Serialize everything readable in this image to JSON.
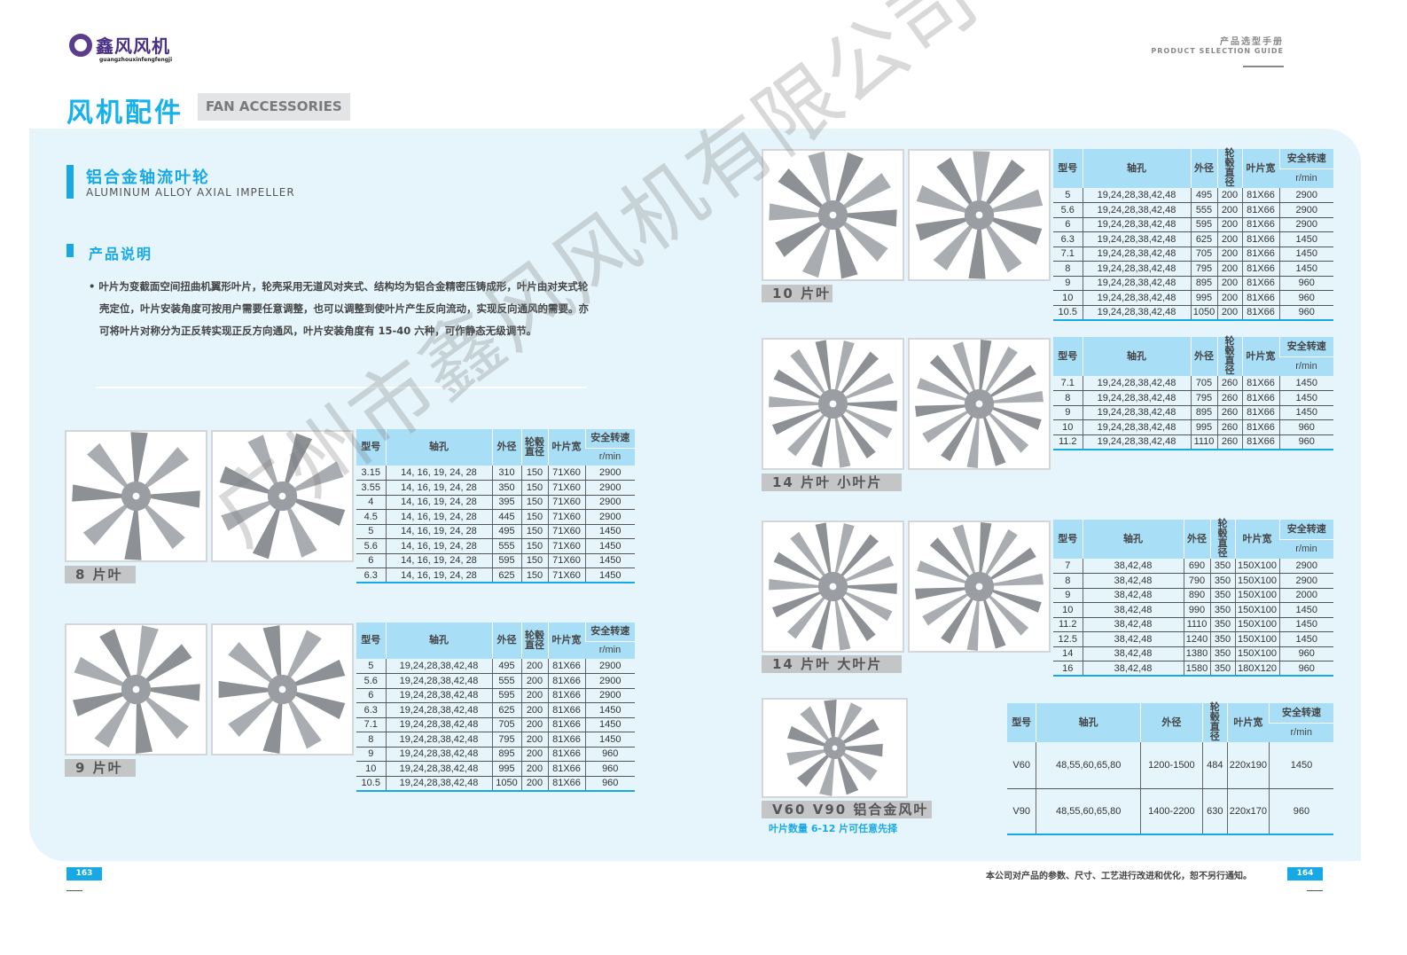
{
  "logo": {
    "name": "鑫风风机",
    "sub": "guangzhouxinfengfengji"
  },
  "header": {
    "title_cn": "风机配件",
    "title_en": "FAN ACCESSORIES",
    "guide_cn": "产品选型手册",
    "guide_en": "PRODUCT SELECTION GUIDE"
  },
  "section": {
    "title_cn": "铝合金轴流叶轮",
    "title_en": "ALUMINUM ALLOY AXIAL IMPELLER",
    "sub_title": "产品说明",
    "description": "• 叶片为变截面空间扭曲机翼形叶片，轮壳采用无道风对夹式、结构均为铝合金精密压铸成形，叶片由对夹式轮壳定位，叶片安装角度可按用户需要任意调整，也可以调整到使叶片产生反向流动，实现反向通风的需要。亦可将叶片对称分为正反转实现正反方向通风，叶片安装角度有 15-40 六种，可作静态无级调节。"
  },
  "table_header": {
    "model": "型号",
    "shaft": "轴孔",
    "outer": "外径",
    "hub": "轮毂直径",
    "blade": "叶片宽",
    "speed": "安全转速",
    "unit": "r/min"
  },
  "products": [
    {
      "label": "8 片叶",
      "blades": 8,
      "rows": [
        [
          "3.15",
          "14, 16, 19, 24, 28",
          "310",
          "150",
          "71X60",
          "2900"
        ],
        [
          "3.55",
          "14, 16, 19, 24, 28",
          "350",
          "150",
          "71X60",
          "2900"
        ],
        [
          "4",
          "14, 16, 19, 24, 28",
          "395",
          "150",
          "71X60",
          "2900"
        ],
        [
          "4.5",
          "14, 16, 19, 24, 28",
          "445",
          "150",
          "71X60",
          "2900"
        ],
        [
          "5",
          "14, 16, 19, 24, 28",
          "495",
          "150",
          "71X60",
          "1450"
        ],
        [
          "5.6",
          "14, 16, 19, 24, 28",
          "555",
          "150",
          "71X60",
          "1450"
        ],
        [
          "6",
          "14, 16, 19, 24, 28",
          "595",
          "150",
          "71X60",
          "1450"
        ],
        [
          "6.3",
          "14, 16, 19, 24, 28",
          "625",
          "150",
          "71X60",
          "1450"
        ]
      ]
    },
    {
      "label": "9 片叶",
      "blades": 9,
      "rows": [
        [
          "5",
          "19,24,28,38,42,48",
          "495",
          "200",
          "81X66",
          "2900"
        ],
        [
          "5.6",
          "19,24,28,38,42,48",
          "555",
          "200",
          "81X66",
          "2900"
        ],
        [
          "6",
          "19,24,28,38,42,48",
          "595",
          "200",
          "81X66",
          "2900"
        ],
        [
          "6.3",
          "19,24,28,38,42,48",
          "625",
          "200",
          "81X66",
          "1450"
        ],
        [
          "7.1",
          "19,24,28,38,42,48",
          "705",
          "200",
          "81X66",
          "1450"
        ],
        [
          "8",
          "19,24,28,38,42,48",
          "795",
          "200",
          "81X66",
          "1450"
        ],
        [
          "9",
          "19,24,28,38,42,48",
          "895",
          "200",
          "81X66",
          "960"
        ],
        [
          "10",
          "19,24,28,38,42,48",
          "995",
          "200",
          "81X66",
          "960"
        ],
        [
          "10.5",
          "19,24,28,38,42,48",
          "1050",
          "200",
          "81X66",
          "960"
        ]
      ]
    },
    {
      "label": "10 片叶",
      "blades": 10,
      "rows": [
        [
          "5",
          "19,24,28,38,42,48",
          "495",
          "200",
          "81X66",
          "2900"
        ],
        [
          "5.6",
          "19,24,28,38,42,48",
          "555",
          "200",
          "81X66",
          "2900"
        ],
        [
          "6",
          "19,24,28,38,42,48",
          "595",
          "200",
          "81X66",
          "2900"
        ],
        [
          "6.3",
          "19,24,28,38,42,48",
          "625",
          "200",
          "81X66",
          "1450"
        ],
        [
          "7.1",
          "19,24,28,38,42,48",
          "705",
          "200",
          "81X66",
          "1450"
        ],
        [
          "8",
          "19,24,28,38,42,48",
          "795",
          "200",
          "81X66",
          "1450"
        ],
        [
          "9",
          "19,24,28,38,42,48",
          "895",
          "200",
          "81X66",
          "960"
        ],
        [
          "10",
          "19,24,28,38,42,48",
          "995",
          "200",
          "81X66",
          "960"
        ],
        [
          "10.5",
          "19,24,28,38,42,48",
          "1050",
          "200",
          "81X66",
          "960"
        ]
      ]
    },
    {
      "label": "14 片叶  小叶片",
      "blades": 14,
      "rows": [
        [
          "7.1",
          "19,24,28,38,42,48",
          "705",
          "260",
          "81X66",
          "1450"
        ],
        [
          "8",
          "19,24,28,38,42,48",
          "795",
          "260",
          "81X66",
          "1450"
        ],
        [
          "9",
          "19,24,28,38,42,48",
          "895",
          "260",
          "81X66",
          "1450"
        ],
        [
          "10",
          "19,24,28,38,42,48",
          "995",
          "260",
          "81X66",
          "960"
        ],
        [
          "11.2",
          "19,24,28,38,42,48",
          "1110",
          "260",
          "81X66",
          "960"
        ]
      ]
    },
    {
      "label": "14 片叶  大叶片",
      "blades": 14,
      "rows": [
        [
          "7",
          "38,42,48",
          "690",
          "350",
          "150X100",
          "2900"
        ],
        [
          "8",
          "38,42,48",
          "790",
          "350",
          "150X100",
          "2900"
        ],
        [
          "9",
          "38,42,48",
          "890",
          "350",
          "150X100",
          "2000"
        ],
        [
          "10",
          "38,42,48",
          "990",
          "350",
          "150X100",
          "1450"
        ],
        [
          "11.2",
          "38,42,48",
          "1110",
          "350",
          "150X100",
          "1450"
        ],
        [
          "12.5",
          "38,42,48",
          "1240",
          "350",
          "150X100",
          "1450"
        ],
        [
          "14",
          "38,42,48",
          "1380",
          "350",
          "150X100",
          "960"
        ],
        [
          "16",
          "38,42,48",
          "1580",
          "350",
          "180X120",
          "960"
        ]
      ]
    },
    {
      "label": "V60 V90 铝合金风叶",
      "blades": 11,
      "caption": "叶片数量 6-12 片可任意先择",
      "rows": [
        [
          "V60",
          "48,55,60,65,80",
          "1200-1500",
          "484",
          "220x190",
          "1450"
        ],
        [
          "V90",
          "48,55,60,65,80",
          "1400-2200",
          "630",
          "220x170",
          "960"
        ]
      ]
    }
  ],
  "watermark": "广州市鑫风风机有限公司",
  "footer": {
    "page_left": "163",
    "page_right": "164",
    "notice": "本公司对产品的参数、尺寸、工艺进行改进和优化，恕不另行通知。"
  },
  "colors": {
    "accent": "#17a9e6",
    "panel": "#e6f5fc",
    "table_header": "#a9def7"
  }
}
